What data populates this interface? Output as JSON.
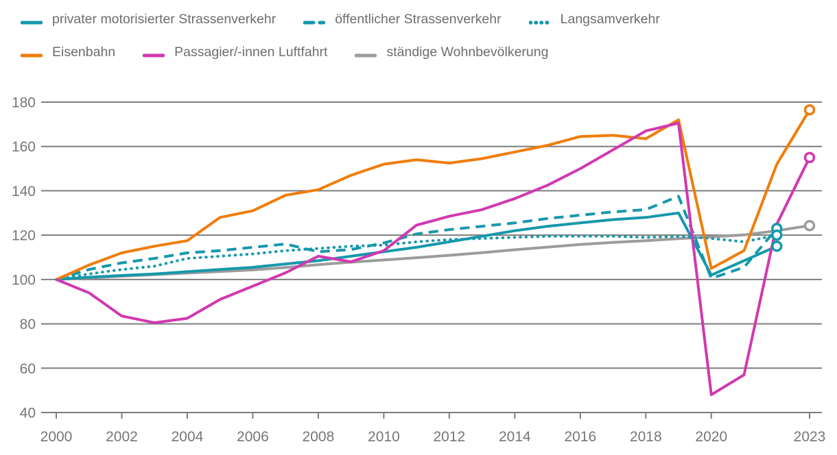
{
  "colors": {
    "teal": "#1598ac",
    "orange": "#f07d0a",
    "magenta": "#d139b0",
    "population_gray": "#9c9c9c",
    "grid_gray": "#7d7d7d",
    "axis_text_gray": "#767676",
    "legend_text_gray": "#6d6d6d",
    "background": "#ffffff"
  },
  "chart_data": {
    "type": "line",
    "title": "",
    "grid": true,
    "legend_position": "top-left",
    "x_start_year": 2000,
    "x_end_year": 2023,
    "xlim": [
      2000,
      2023
    ],
    "ylim": [
      40,
      180
    ],
    "yticks": [
      40,
      60,
      80,
      100,
      120,
      140,
      160,
      180
    ],
    "x_tick_labels": [
      "2000",
      "2002",
      "2004",
      "2006",
      "2008",
      "2010",
      "2012",
      "2014",
      "2016",
      "2018",
      "2020",
      "2023"
    ],
    "x_tick_years": [
      2000,
      2002,
      2004,
      2006,
      2008,
      2010,
      2012,
      2014,
      2016,
      2018,
      2020,
      2023
    ],
    "series": [
      {
        "id": "miv",
        "name": "privater motorisierter Strassenverkehr",
        "color": "#1598ac",
        "dash": "solid",
        "start_year": 2000,
        "values": [
          100,
          101,
          101.8,
          102.5,
          103.5,
          104.5,
          105.5,
          107,
          108.5,
          110.5,
          112.5,
          114.5,
          117,
          119.5,
          122,
          124,
          125.5,
          127,
          128,
          130,
          102,
          108.5,
          115
        ]
      },
      {
        "id": "oev-strasse",
        "name": "öffentlicher Strassenverkehr",
        "color": "#1598ac",
        "dash": "dashed",
        "start_year": 2000,
        "values": [
          100,
          104.5,
          107.5,
          109.5,
          112,
          113,
          114.5,
          116,
          112.5,
          113.5,
          116.5,
          120.5,
          122.5,
          124,
          125.5,
          127.5,
          129,
          130.5,
          131.5,
          137.5,
          100.5,
          105.5,
          123
        ]
      },
      {
        "id": "langsamverkehr",
        "name": "Langsamverkehr",
        "color": "#1598ac",
        "dash": "dotted",
        "start_year": 2000,
        "values": [
          100,
          102.5,
          104.5,
          106,
          109.5,
          110.5,
          111.5,
          113,
          114,
          115,
          115.5,
          117,
          118,
          118.5,
          119,
          119.5,
          119.5,
          119.5,
          119,
          119.5,
          118.5,
          117,
          120
        ]
      },
      {
        "id": "eisenbahn",
        "name": "Eisenbahn",
        "color": "#f07d0a",
        "dash": "solid",
        "start_year": 2000,
        "values": [
          100,
          106.5,
          112,
          115,
          117.5,
          128,
          131,
          138,
          140.5,
          147,
          152,
          154,
          152.5,
          154.5,
          157.5,
          160.5,
          164.5,
          165,
          163.5,
          172,
          105,
          113,
          152,
          176.5
        ]
      },
      {
        "id": "luftfahrt",
        "name": "Passagier/-innen Luftfahrt",
        "color": "#d139b0",
        "dash": "solid",
        "start_year": 2000,
        "values": [
          100,
          94,
          83.5,
          80.5,
          82.5,
          91,
          97,
          103,
          110.5,
          108,
          113,
          124.5,
          128.5,
          131.5,
          136.5,
          142.5,
          150,
          158.5,
          167,
          170.5,
          48,
          57,
          125,
          155
        ]
      },
      {
        "id": "bevoelkerung",
        "name": "ständige Wohnbevölkerung",
        "color": "#9c9c9c",
        "dash": "solid",
        "start_year": 2000,
        "values": [
          100,
          100.7,
          101.5,
          102.2,
          102.9,
          103.6,
          104.3,
          105.4,
          106.7,
          107.8,
          108.8,
          109.8,
          110.9,
          112.1,
          113.4,
          114.6,
          115.8,
          116.7,
          117.5,
          118.4,
          119.2,
          120.1,
          122,
          124.3
        ]
      }
    ],
    "legend_rows": [
      [
        0,
        1,
        2
      ],
      [
        3,
        4,
        5
      ]
    ]
  }
}
